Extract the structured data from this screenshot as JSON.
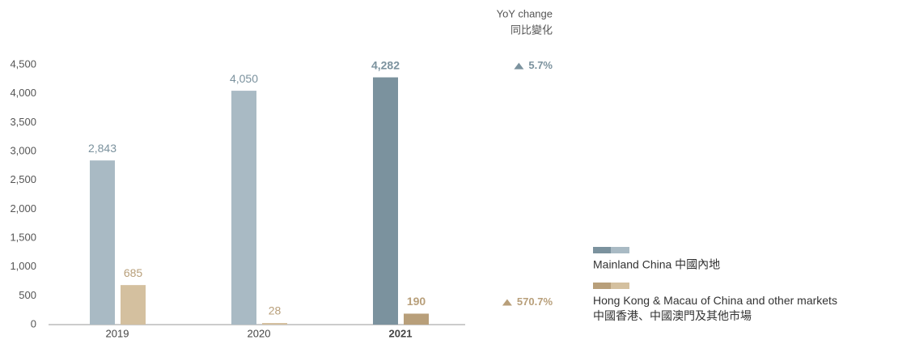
{
  "chart_data": {
    "type": "bar",
    "categories": [
      "2019",
      "2020",
      "2021"
    ],
    "series": [
      {
        "name": "Mainland China 中國內地",
        "color": "#a9bac4",
        "highlight_color": "#7b929e",
        "label_color": "#7b929e",
        "highlight": [
          false,
          false,
          true
        ],
        "values": [
          2843,
          4050,
          4282
        ],
        "value_labels": [
          "2,843",
          "4,050",
          "4,282"
        ]
      },
      {
        "name": "Hong Kong & Macau of China and other markets\n中國香港、中國澳門及其他市場",
        "color": "#d4c09f",
        "highlight_color": "#b89f7a",
        "label_color": "#b89f7a",
        "highlight": [
          false,
          false,
          true
        ],
        "values": [
          685,
          28,
          190
        ]
      }
    ],
    "ylim": [
      0,
      4500
    ],
    "yticks": [
      0,
      500,
      {
        "value": 1000,
        "label": "1,000"
      },
      {
        "value": 1500,
        "label": "1,500"
      },
      {
        "value": 2000,
        "label": "2,000"
      },
      {
        "value": 2500,
        "label": "2,500"
      },
      {
        "value": 3000,
        "label": "3,000"
      },
      {
        "value": 3500,
        "label": "3,500"
      },
      {
        "value": 4000,
        "label": "4,000"
      },
      {
        "value": 4500,
        "label": "4,500"
      }
    ],
    "yoy": {
      "title": "YoY change",
      "subtitle": "同比變化",
      "values": [
        5.7,
        570.7
      ],
      "value_labels": [
        "5.7%",
        "570.7%"
      ]
    }
  }
}
